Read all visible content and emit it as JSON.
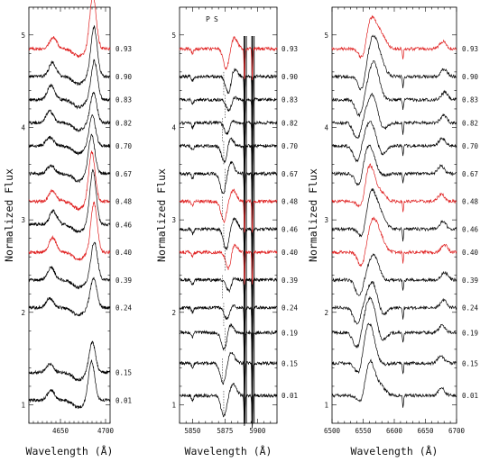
{
  "figure": {
    "ylabel": "Normalized Flux",
    "xlabel": "Wavelength (Å)",
    "phases": [
      "0.93",
      "0.90",
      "0.83",
      "0.82",
      "0.70",
      "0.67",
      "0.48",
      "0.46",
      "0.40",
      "0.39",
      "0.24",
      "0.19",
      "0.15",
      "0.01"
    ],
    "red_phases": [
      "0.93",
      "0.48",
      "0.40"
    ]
  },
  "chart_data": [
    {
      "type": "line",
      "panel": "left",
      "xlabel": "Wavelength (Å)",
      "ylabel": "Normalized Flux",
      "xlim": [
        4615,
        4705
      ],
      "ylim": [
        0.8,
        5.3
      ],
      "xticks": [
        4650,
        4700
      ],
      "yticks": [
        1,
        2,
        3,
        4,
        5
      ],
      "series": [
        {
          "phase": "0.93",
          "offset": 4.85,
          "color": "#e02020"
        },
        {
          "phase": "0.90",
          "offset": 4.55,
          "color": "#000000"
        },
        {
          "phase": "0.83",
          "offset": 4.3,
          "color": "#000000"
        },
        {
          "phase": "0.82",
          "offset": 4.05,
          "color": "#000000"
        },
        {
          "phase": "0.70",
          "offset": 3.8,
          "color": "#000000"
        },
        {
          "phase": "0.67",
          "offset": 3.5,
          "color": "#000000"
        },
        {
          "phase": "0.48",
          "offset": 3.2,
          "color": "#e02020"
        },
        {
          "phase": "0.46",
          "offset": 2.95,
          "color": "#000000"
        },
        {
          "phase": "0.40",
          "offset": 2.65,
          "color": "#e02020"
        },
        {
          "phase": "0.39",
          "offset": 2.35,
          "color": "#000000"
        },
        {
          "phase": "0.24",
          "offset": 2.05,
          "color": "#000000"
        },
        {
          "phase": "0.15",
          "offset": 1.35,
          "color": "#000000"
        },
        {
          "phase": "0.01",
          "offset": 1.05,
          "color": "#000000"
        }
      ]
    },
    {
      "type": "line",
      "panel": "middle",
      "xlabel": "Wavelength (Å)",
      "ylabel": "Normalized Flux",
      "xlim": [
        5840,
        5915
      ],
      "ylim": [
        0.8,
        5.3
      ],
      "xticks": [
        5850,
        5875,
        5900
      ],
      "yticks": [
        1,
        2,
        3,
        4,
        5
      ],
      "annotations": [
        "P",
        "S"
      ],
      "series": [
        {
          "phase": "0.93",
          "offset": 4.85,
          "color": "#e02020"
        },
        {
          "phase": "0.90",
          "offset": 4.55,
          "color": "#000000"
        },
        {
          "phase": "0.83",
          "offset": 4.3,
          "color": "#000000"
        },
        {
          "phase": "0.82",
          "offset": 4.05,
          "color": "#000000"
        },
        {
          "phase": "0.70",
          "offset": 3.8,
          "color": "#000000"
        },
        {
          "phase": "0.67",
          "offset": 3.5,
          "color": "#000000"
        },
        {
          "phase": "0.48",
          "offset": 3.2,
          "color": "#e02020"
        },
        {
          "phase": "0.46",
          "offset": 2.9,
          "color": "#000000"
        },
        {
          "phase": "0.40",
          "offset": 2.65,
          "color": "#e02020"
        },
        {
          "phase": "0.39",
          "offset": 2.35,
          "color": "#000000"
        },
        {
          "phase": "0.24",
          "offset": 2.05,
          "color": "#000000"
        },
        {
          "phase": "0.19",
          "offset": 1.78,
          "color": "#000000"
        },
        {
          "phase": "0.15",
          "offset": 1.45,
          "color": "#000000"
        },
        {
          "phase": "0.01",
          "offset": 1.1,
          "color": "#000000"
        }
      ]
    },
    {
      "type": "line",
      "panel": "right",
      "xlabel": "Wavelength (Å)",
      "ylabel": "Normalized Flux",
      "xlim": [
        6500,
        6700
      ],
      "ylim": [
        0.8,
        5.3
      ],
      "xticks": [
        6500,
        6550,
        6600,
        6650,
        6700
      ],
      "yticks": [
        1,
        2,
        3,
        4,
        5
      ],
      "series": [
        {
          "phase": "0.93",
          "offset": 4.85,
          "color": "#e02020"
        },
        {
          "phase": "0.90",
          "offset": 4.55,
          "color": "#000000"
        },
        {
          "phase": "0.83",
          "offset": 4.3,
          "color": "#000000"
        },
        {
          "phase": "0.82",
          "offset": 4.05,
          "color": "#000000"
        },
        {
          "phase": "0.70",
          "offset": 3.8,
          "color": "#000000"
        },
        {
          "phase": "0.67",
          "offset": 3.5,
          "color": "#000000"
        },
        {
          "phase": "0.48",
          "offset": 3.2,
          "color": "#e02020"
        },
        {
          "phase": "0.46",
          "offset": 2.9,
          "color": "#000000"
        },
        {
          "phase": "0.40",
          "offset": 2.65,
          "color": "#e02020"
        },
        {
          "phase": "0.39",
          "offset": 2.35,
          "color": "#000000"
        },
        {
          "phase": "0.24",
          "offset": 2.05,
          "color": "#000000"
        },
        {
          "phase": "0.19",
          "offset": 1.78,
          "color": "#000000"
        },
        {
          "phase": "0.15",
          "offset": 1.45,
          "color": "#000000"
        },
        {
          "phase": "0.01",
          "offset": 1.1,
          "color": "#000000"
        }
      ]
    }
  ]
}
